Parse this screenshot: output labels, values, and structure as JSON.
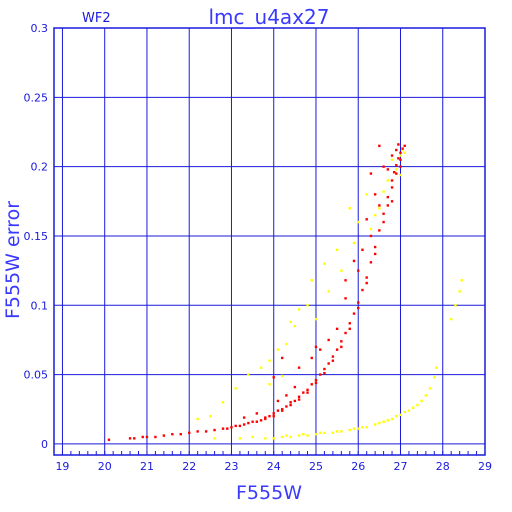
{
  "chart_data": {
    "type": "scatter",
    "title": "lmc_u4ax27",
    "corner_label": "WF2",
    "xlabel": "F555W",
    "ylabel": "F555W error",
    "xlim": [
      18.8,
      29.0
    ],
    "ylim": [
      -0.008,
      0.3
    ],
    "xticks": [
      19,
      20,
      21,
      22,
      23,
      24,
      25,
      26,
      27,
      28,
      29
    ],
    "yticks": [
      0,
      0.05,
      0.1,
      0.15,
      0.2,
      0.25,
      0.3
    ],
    "ytick_labels": [
      "0",
      "0.05",
      "0.1",
      "0.15",
      "0.2",
      "0.25",
      "0.3"
    ],
    "grid": true,
    "series": [
      {
        "color": "#ff0000",
        "points": [
          [
            20.1,
            0.003
          ],
          [
            20.6,
            0.004
          ],
          [
            20.7,
            0.004
          ],
          [
            20.9,
            0.005
          ],
          [
            21.0,
            0.005
          ],
          [
            21.2,
            0.005
          ],
          [
            21.4,
            0.006
          ],
          [
            21.6,
            0.007
          ],
          [
            21.8,
            0.007
          ],
          [
            22.0,
            0.008
          ],
          [
            22.2,
            0.009
          ],
          [
            22.4,
            0.009
          ],
          [
            22.6,
            0.01
          ],
          [
            22.8,
            0.011
          ],
          [
            23.0,
            0.012
          ],
          [
            23.1,
            0.013
          ],
          [
            23.3,
            0.014
          ],
          [
            23.4,
            0.015
          ],
          [
            23.6,
            0.016
          ],
          [
            23.7,
            0.017
          ],
          [
            23.8,
            0.019
          ],
          [
            23.9,
            0.02
          ],
          [
            24.0,
            0.022
          ],
          [
            24.1,
            0.024
          ],
          [
            24.2,
            0.025
          ],
          [
            24.3,
            0.027
          ],
          [
            24.4,
            0.03
          ],
          [
            24.5,
            0.031
          ],
          [
            24.6,
            0.034
          ],
          [
            24.7,
            0.037
          ],
          [
            24.8,
            0.039
          ],
          [
            24.9,
            0.043
          ],
          [
            25.0,
            0.046
          ],
          [
            25.1,
            0.05
          ],
          [
            25.2,
            0.054
          ],
          [
            25.3,
            0.058
          ],
          [
            25.4,
            0.063
          ],
          [
            25.5,
            0.068
          ],
          [
            25.6,
            0.074
          ],
          [
            25.7,
            0.08
          ],
          [
            25.8,
            0.087
          ],
          [
            25.9,
            0.094
          ],
          [
            26.0,
            0.102
          ],
          [
            26.1,
            0.111
          ],
          [
            26.2,
            0.12
          ],
          [
            26.3,
            0.131
          ],
          [
            26.4,
            0.142
          ],
          [
            26.5,
            0.154
          ],
          [
            26.6,
            0.166
          ],
          [
            26.7,
            0.178
          ],
          [
            26.8,
            0.19
          ],
          [
            26.85,
            0.196
          ],
          [
            26.9,
            0.201
          ],
          [
            26.95,
            0.206
          ],
          [
            27.0,
            0.21
          ],
          [
            27.05,
            0.213
          ],
          [
            27.1,
            0.215
          ],
          [
            26.95,
            0.216
          ],
          [
            27.0,
            0.205
          ],
          [
            26.9,
            0.195
          ],
          [
            26.8,
            0.185
          ],
          [
            26.7,
            0.172
          ],
          [
            26.6,
            0.16
          ],
          [
            26.4,
            0.137
          ],
          [
            26.2,
            0.116
          ],
          [
            26.0,
            0.098
          ],
          [
            25.8,
            0.083
          ],
          [
            25.6,
            0.07
          ],
          [
            25.4,
            0.06
          ],
          [
            25.2,
            0.051
          ],
          [
            25.0,
            0.044
          ],
          [
            24.8,
            0.037
          ],
          [
            24.6,
            0.032
          ],
          [
            24.4,
            0.028
          ],
          [
            24.2,
            0.024
          ],
          [
            24.0,
            0.02
          ],
          [
            23.8,
            0.018
          ],
          [
            23.5,
            0.016
          ],
          [
            23.2,
            0.013
          ],
          [
            22.9,
            0.011
          ],
          [
            24.1,
            0.031
          ],
          [
            24.3,
            0.035
          ],
          [
            24.5,
            0.041
          ],
          [
            24.2,
            0.062
          ],
          [
            24.0,
            0.048
          ],
          [
            25.3,
            0.075
          ],
          [
            25.1,
            0.068
          ],
          [
            25.5,
            0.083
          ],
          [
            25.7,
            0.105
          ],
          [
            26.0,
            0.125
          ],
          [
            26.3,
            0.15
          ],
          [
            26.1,
            0.14
          ],
          [
            26.5,
            0.172
          ],
          [
            26.3,
            0.195
          ],
          [
            26.6,
            0.2
          ],
          [
            26.4,
            0.18
          ],
          [
            26.2,
            0.162
          ],
          [
            25.9,
            0.132
          ],
          [
            25.7,
            0.118
          ],
          [
            26.5,
            0.215
          ],
          [
            26.8,
            0.208
          ],
          [
            26.7,
            0.198
          ],
          [
            26.9,
            0.212
          ],
          [
            27.0,
            0.2
          ],
          [
            26.8,
            0.175
          ],
          [
            24.6,
            0.055
          ],
          [
            24.9,
            0.062
          ],
          [
            25.0,
            0.07
          ],
          [
            23.6,
            0.022
          ],
          [
            23.3,
            0.019
          ]
        ]
      },
      {
        "color": "#ffff00",
        "points": [
          [
            23.8,
            0.004
          ],
          [
            24.0,
            0.004
          ],
          [
            24.2,
            0.005
          ],
          [
            24.4,
            0.005
          ],
          [
            24.6,
            0.006
          ],
          [
            24.8,
            0.006
          ],
          [
            25.0,
            0.007
          ],
          [
            25.2,
            0.008
          ],
          [
            25.4,
            0.008
          ],
          [
            25.6,
            0.009
          ],
          [
            25.8,
            0.01
          ],
          [
            26.0,
            0.011
          ],
          [
            26.2,
            0.012
          ],
          [
            26.4,
            0.014
          ],
          [
            26.6,
            0.016
          ],
          [
            26.8,
            0.018
          ],
          [
            27.0,
            0.021
          ],
          [
            27.2,
            0.024
          ],
          [
            27.4,
            0.028
          ],
          [
            27.5,
            0.031
          ],
          [
            27.6,
            0.035
          ],
          [
            27.7,
            0.04
          ],
          [
            27.8,
            0.048
          ],
          [
            27.85,
            0.055
          ],
          [
            26.9,
            0.02
          ],
          [
            27.1,
            0.023
          ],
          [
            27.3,
            0.026
          ],
          [
            26.5,
            0.015
          ],
          [
            26.7,
            0.017
          ],
          [
            26.1,
            0.012
          ],
          [
            25.9,
            0.011
          ],
          [
            25.5,
            0.009
          ],
          [
            25.1,
            0.008
          ],
          [
            24.7,
            0.007
          ],
          [
            24.3,
            0.006
          ],
          [
            23.5,
            0.005
          ],
          [
            23.2,
            0.004
          ],
          [
            22.6,
            0.004
          ],
          [
            28.3,
            0.1
          ],
          [
            28.4,
            0.11
          ],
          [
            28.45,
            0.118
          ],
          [
            28.2,
            0.09
          ],
          [
            26.95,
            0.216
          ],
          [
            27.05,
            0.212
          ],
          [
            27.0,
            0.208
          ],
          [
            26.8,
            0.205
          ],
          [
            26.7,
            0.19
          ],
          [
            26.5,
            0.17
          ],
          [
            26.3,
            0.155
          ],
          [
            26.1,
            0.14
          ],
          [
            25.9,
            0.145
          ],
          [
            25.6,
            0.125
          ],
          [
            25.3,
            0.11
          ],
          [
            25.0,
            0.09
          ],
          [
            24.8,
            0.1
          ],
          [
            24.5,
            0.085
          ],
          [
            24.3,
            0.072
          ],
          [
            24.1,
            0.068
          ],
          [
            23.9,
            0.06
          ],
          [
            23.7,
            0.055
          ],
          [
            23.4,
            0.05
          ],
          [
            23.1,
            0.04
          ],
          [
            22.8,
            0.03
          ],
          [
            22.5,
            0.02
          ],
          [
            22.2,
            0.018
          ],
          [
            25.5,
            0.14
          ],
          [
            26.0,
            0.16
          ],
          [
            26.2,
            0.18
          ],
          [
            25.8,
            0.17
          ],
          [
            24.9,
            0.118
          ],
          [
            24.6,
            0.097
          ],
          [
            26.9,
            0.198
          ],
          [
            27.1,
            0.21
          ],
          [
            27.0,
            0.194
          ],
          [
            26.6,
            0.182
          ],
          [
            24.4,
            0.088
          ],
          [
            25.2,
            0.13
          ],
          [
            23.9,
            0.043
          ],
          [
            24.2,
            0.049
          ],
          [
            26.4,
            0.165
          ]
        ]
      }
    ]
  }
}
